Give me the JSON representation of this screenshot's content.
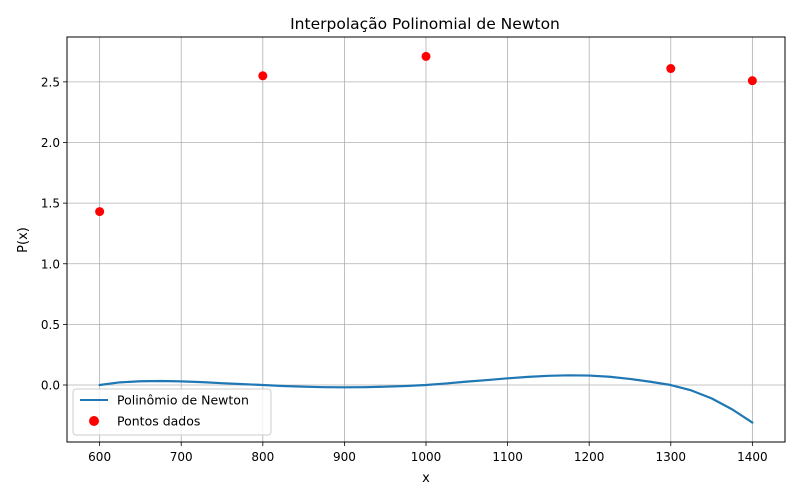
{
  "chart_data": {
    "type": "line",
    "title": "Interpolação Polinomial de Newton",
    "xlabel": "x",
    "ylabel": "P(x)",
    "xlim": [
      560,
      1440
    ],
    "ylim": [
      -0.47,
      2.87
    ],
    "xticks": [
      600,
      700,
      800,
      900,
      1000,
      1100,
      1200,
      1300,
      1400
    ],
    "yticks": [
      0.0,
      0.5,
      1.0,
      1.5,
      2.0,
      2.5
    ],
    "ytick_labels": [
      "0.0",
      "0.5",
      "1.0",
      "1.5",
      "2.0",
      "2.5"
    ],
    "grid": true,
    "legend_position": "lower-left",
    "series": [
      {
        "name": "Polinômio de Newton",
        "kind": "line",
        "color": "#1f77b4",
        "x": [
          600,
          625,
          650,
          675,
          700,
          725,
          750,
          775,
          800,
          825,
          850,
          875,
          900,
          925,
          950,
          975,
          1000,
          1025,
          1050,
          1075,
          1100,
          1125,
          1150,
          1175,
          1200,
          1225,
          1250,
          1275,
          1300,
          1325,
          1350,
          1375,
          1400
        ],
        "y": [
          0.0,
          0.022,
          0.031,
          0.033,
          0.03,
          0.024,
          0.015,
          0.007,
          0.0,
          -0.008,
          -0.014,
          -0.018,
          -0.019,
          -0.018,
          -0.014,
          -0.008,
          0.0,
          0.013,
          0.028,
          0.041,
          0.055,
          0.067,
          0.076,
          0.08,
          0.078,
          0.068,
          0.05,
          0.027,
          0.0,
          -0.044,
          -0.11,
          -0.2,
          -0.31
        ]
      },
      {
        "name": "Pontos dados",
        "kind": "scatter",
        "color": "#ff0000",
        "x": [
          600,
          800,
          1000,
          1300,
          1400
        ],
        "y": [
          1.43,
          2.55,
          2.71,
          2.61,
          2.51
        ]
      }
    ]
  }
}
